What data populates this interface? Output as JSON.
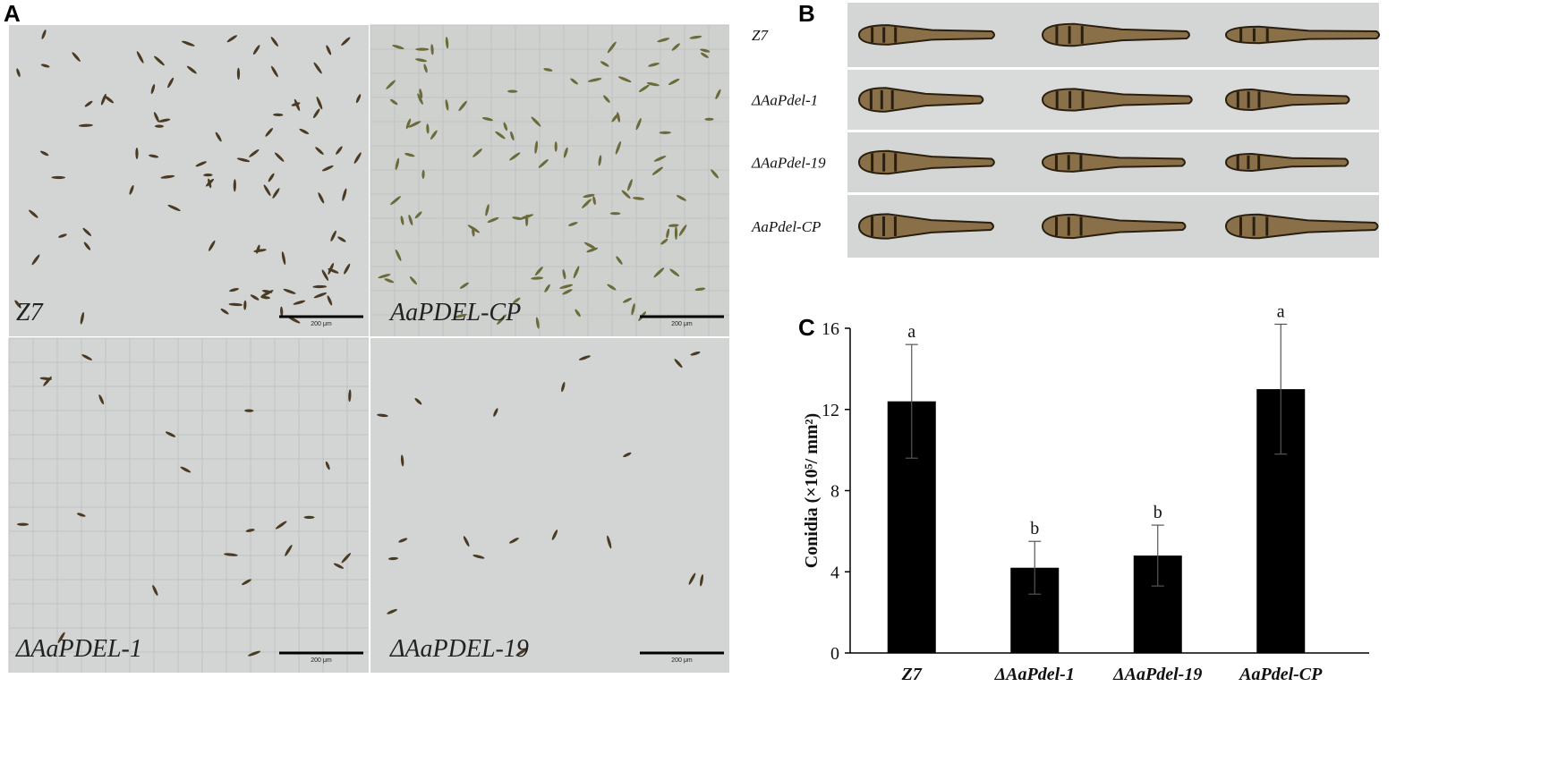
{
  "figure": {
    "panel_labels": [
      "A",
      "B",
      "C"
    ],
    "panel_a": {
      "images": [
        {
          "label": "Z7",
          "scale": "200 μm"
        },
        {
          "label": "AaPDEL-CP",
          "scale": "200 μm"
        },
        {
          "label": "ΔAaPDEL-1",
          "scale": "200 μm"
        },
        {
          "label": "ΔAaPDEL-19",
          "scale": "200 μm"
        }
      ]
    },
    "panel_b": {
      "rows": [
        "Z7",
        "ΔAaPdel-1",
        "ΔAaPdel-19",
        "AaPdel-CP"
      ]
    }
  },
  "chart_data": {
    "type": "bar",
    "y_label": "Conidia (×10⁵/ mm²)",
    "categories": [
      "Z7",
      "ΔAaPdel-1",
      "ΔAaPdel-19",
      "AaPdel-CP"
    ],
    "values": [
      12.4,
      4.2,
      4.8,
      13.0
    ],
    "errors": [
      2.8,
      1.3,
      1.5,
      3.2
    ],
    "annotations": [
      "a",
      "b",
      "b",
      "a"
    ],
    "color": "#000000",
    "ylim": [
      0,
      16
    ],
    "yticks": [
      0,
      4,
      8,
      12,
      16
    ],
    "grid": false
  }
}
